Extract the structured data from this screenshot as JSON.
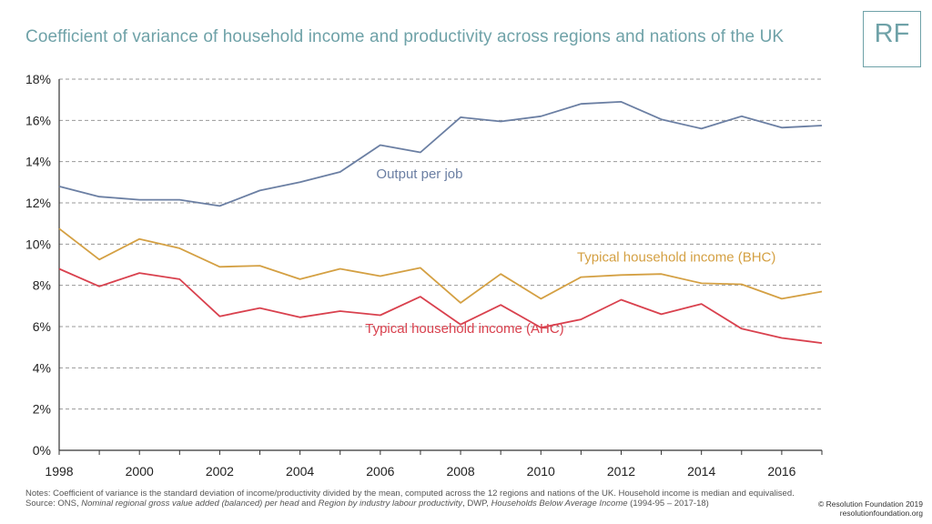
{
  "title": "Coefficient of variance of household income and productivity across regions and nations of the UK",
  "logo": "RF",
  "notes": {
    "part1": "Notes: Coefficient of variance is the standard deviation of income/productivity divided by the mean, computed across the 12 regions and nations of the UK. Household income is median and equivalised. Source: ONS, ",
    "source1": "Nominal regional gross value added (balanced) per head",
    "and1": " and ",
    "source2": "Region by industry labour productivity",
    "sep": ", DWP, ",
    "source3": "Households Below Average Income",
    "part2": " (1994-95 – 2017-18)"
  },
  "credit": {
    "line1": "© Resolution Foundation 2019",
    "line2": "resolutionfoundation.org"
  },
  "chart_data": {
    "type": "line",
    "title": "Coefficient of variance of household income and productivity across regions and nations of the UK",
    "xlabel": "",
    "ylabel": "",
    "x": [
      1998,
      1999,
      2000,
      2001,
      2002,
      2003,
      2004,
      2005,
      2006,
      2007,
      2008,
      2009,
      2010,
      2011,
      2012,
      2013,
      2014,
      2015,
      2016,
      2017
    ],
    "xticks": [
      "1998",
      "2000",
      "2002",
      "2004",
      "2006",
      "2008",
      "2010",
      "2012",
      "2014",
      "2016"
    ],
    "yticks": [
      "0%",
      "2%",
      "4%",
      "6%",
      "8%",
      "10%",
      "12%",
      "14%",
      "16%",
      "18%"
    ],
    "xlim": [
      1998,
      2017
    ],
    "ylim": [
      0,
      18
    ],
    "grid": true,
    "series": [
      {
        "name": "Output per job",
        "color": "#6b7fa3",
        "values": [
          12.8,
          12.3,
          12.15,
          12.15,
          11.85,
          12.6,
          13.0,
          13.5,
          14.8,
          14.45,
          16.15,
          15.95,
          16.2,
          16.8,
          16.9,
          16.05,
          15.6,
          16.2,
          15.65,
          15.75
        ]
      },
      {
        "name": "Typical household income (BHC)",
        "color": "#d4a043",
        "values": [
          10.75,
          9.25,
          10.25,
          9.8,
          8.9,
          8.95,
          8.3,
          8.8,
          8.45,
          8.85,
          7.15,
          8.55,
          7.35,
          8.4,
          8.5,
          8.55,
          8.1,
          8.05,
          7.35,
          7.7
        ]
      },
      {
        "name": "Typical household income (AHC)",
        "color": "#d9414e",
        "values": [
          8.8,
          7.95,
          8.6,
          8.3,
          6.5,
          6.9,
          6.45,
          6.75,
          6.55,
          7.45,
          6.1,
          7.05,
          5.95,
          6.35,
          7.3,
          6.6,
          7.1,
          5.9,
          5.45,
          5.2
        ]
      }
    ]
  }
}
